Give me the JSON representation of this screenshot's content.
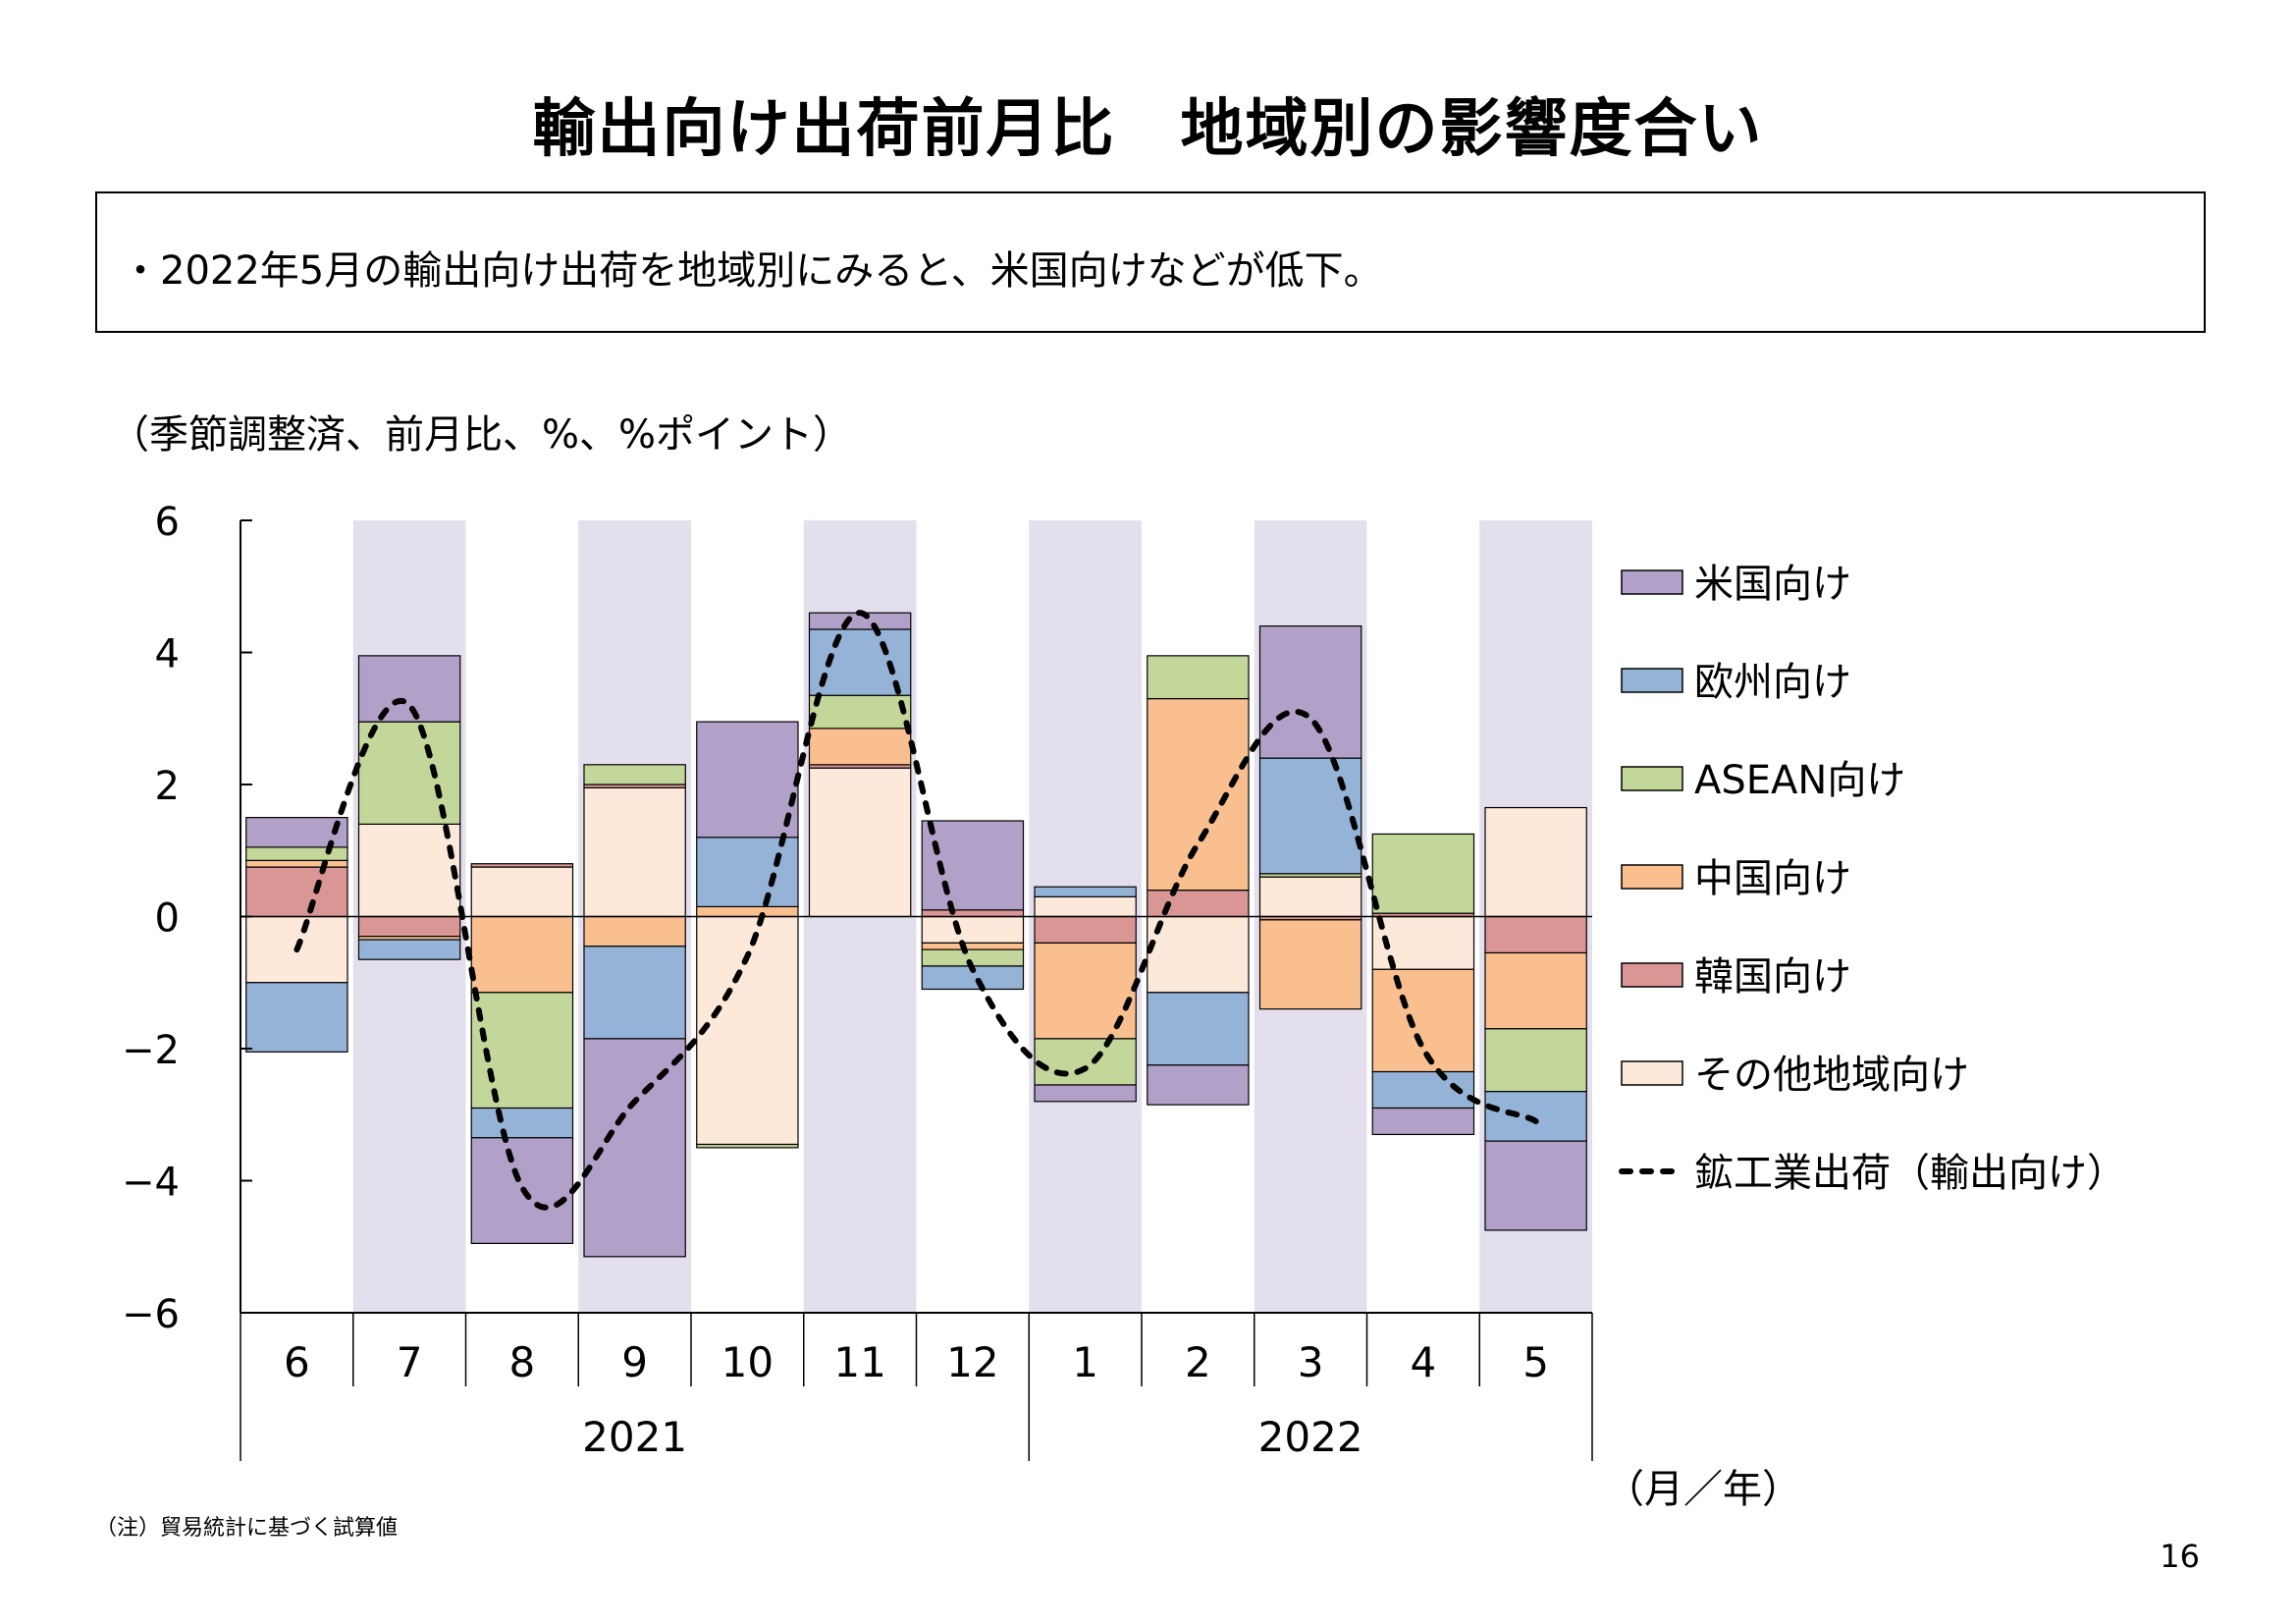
{
  "title": "輸出向け出荷前月比　地域別の影響度合い",
  "summary": "・2022年5月の輸出向け出荷を地域別にみると、米国向けなどが低下。",
  "unit_note": "（季節調整済、前月比、%、%ポイント）",
  "footnote": "（注）貿易統計に基づく試算値",
  "page_number": "16",
  "chart_data": {
    "type": "bar",
    "stacked": true,
    "ylim": [
      -6,
      6
    ],
    "yticks": [
      6,
      4,
      2,
      0,
      -2,
      -4,
      -6
    ],
    "ytick_labels": [
      "6",
      "4",
      "2",
      "0",
      "−2",
      "−4",
      "−6"
    ],
    "categories": [
      "6",
      "7",
      "8",
      "9",
      "10",
      "11",
      "12",
      "1",
      "2",
      "3",
      "4",
      "5"
    ],
    "year_groups": [
      {
        "label": "2021",
        "start": 0,
        "end": 6
      },
      {
        "label": "2022",
        "start": 7,
        "end": 11
      }
    ],
    "x_unit_label": "（月／年）",
    "shaded_categories": [
      1,
      3,
      5,
      7,
      9,
      11
    ],
    "shade_color": "#e4dfec",
    "legend_position": "right",
    "series": [
      {
        "name": "その他地域向け",
        "color": "#fde9d9",
        "values": [
          -1.0,
          1.4,
          0.75,
          1.95,
          -3.45,
          2.25,
          -0.4,
          0.3,
          -1.15,
          0.6,
          -0.8,
          1.65
        ]
      },
      {
        "name": "韓国向け",
        "color": "#da9694",
        "values": [
          0.75,
          -0.3,
          0.05,
          0.05,
          0.0,
          0.05,
          0.1,
          -0.4,
          0.4,
          -0.05,
          0.05,
          -0.55
        ]
      },
      {
        "name": "中国向け",
        "color": "#fabf8f",
        "values": [
          0.1,
          -0.05,
          -1.15,
          -0.45,
          0.15,
          0.55,
          -0.1,
          -1.45,
          2.9,
          -1.35,
          -1.55,
          -1.15
        ]
      },
      {
        "name": "ASEAN向け",
        "color": "#c4d79b",
        "values": [
          0.2,
          1.55,
          -1.75,
          0.3,
          -0.05,
          0.5,
          -0.25,
          -0.7,
          0.65,
          0.05,
          1.2,
          -0.95
        ]
      },
      {
        "name": "欧州向け",
        "color": "#95b3d7",
        "values": [
          -1.05,
          -0.3,
          -0.45,
          -1.4,
          1.05,
          1.0,
          -0.35,
          0.15,
          -1.1,
          1.75,
          -0.55,
          -0.75
        ]
      },
      {
        "name": "米国向け",
        "color": "#b1a0c7",
        "values": [
          0.45,
          1.0,
          -1.6,
          -3.3,
          1.75,
          0.25,
          1.35,
          -0.25,
          -0.6,
          2.0,
          -0.4,
          -1.35
        ]
      }
    ],
    "line_series": {
      "name": "鉱工業出荷（輸出向け）",
      "style": "dotted",
      "color": "#000000",
      "values": [
        -0.5,
        3.2,
        -4.1,
        -2.8,
        -0.6,
        4.6,
        -0.8,
        -2.3,
        1.1,
        3.0,
        -2.0,
        -3.1
      ]
    }
  }
}
